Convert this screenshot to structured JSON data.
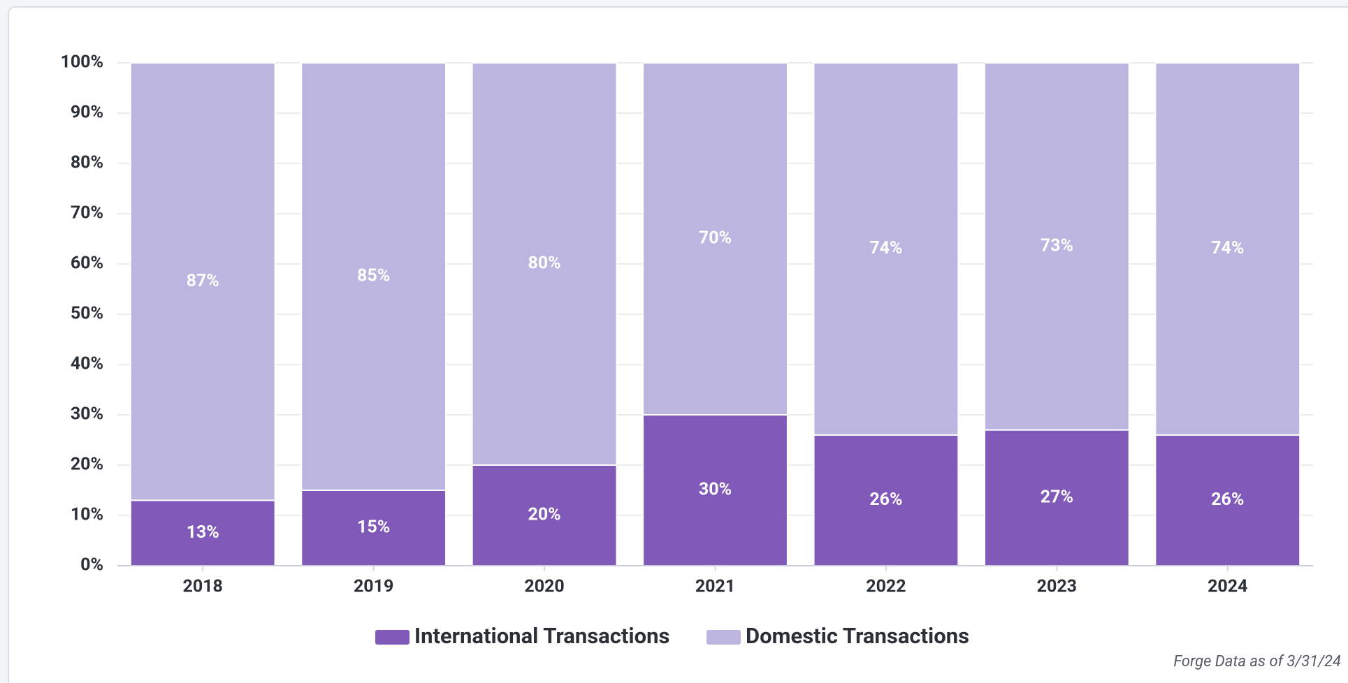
{
  "chart_data": {
    "type": "stacked_bar",
    "categories": [
      "2018",
      "2019",
      "2020",
      "2021",
      "2022",
      "2023",
      "2024"
    ],
    "series": [
      {
        "name": "International Transactions",
        "color": "#8159b8",
        "values": [
          13,
          15,
          20,
          30,
          26,
          27,
          26
        ],
        "value_labels": [
          "13%",
          "15%",
          "20%",
          "30%",
          "26%",
          "27%",
          "26%"
        ]
      },
      {
        "name": "Domestic Transactions",
        "color": "#bbb5df",
        "values": [
          87,
          85,
          80,
          70,
          74,
          73,
          74
        ],
        "value_labels": [
          "87%",
          "85%",
          "80%",
          "70%",
          "74%",
          "73%",
          "74%"
        ]
      }
    ],
    "ylim": [
      0,
      100
    ],
    "yticks": [
      {
        "value": 0,
        "label": "0%"
      },
      {
        "value": 10,
        "label": "10%"
      },
      {
        "value": 20,
        "label": "20%"
      },
      {
        "value": 30,
        "label": "30%"
      },
      {
        "value": 40,
        "label": "40%"
      },
      {
        "value": 50,
        "label": "50%"
      },
      {
        "value": 60,
        "label": "60%"
      },
      {
        "value": 70,
        "label": "70%"
      },
      {
        "value": 80,
        "label": "80%"
      },
      {
        "value": 90,
        "label": "90%"
      },
      {
        "value": 100,
        "label": "100%"
      }
    ],
    "grid": true,
    "legend": "bottom",
    "note": "Forge Data as of 3/31/24"
  }
}
